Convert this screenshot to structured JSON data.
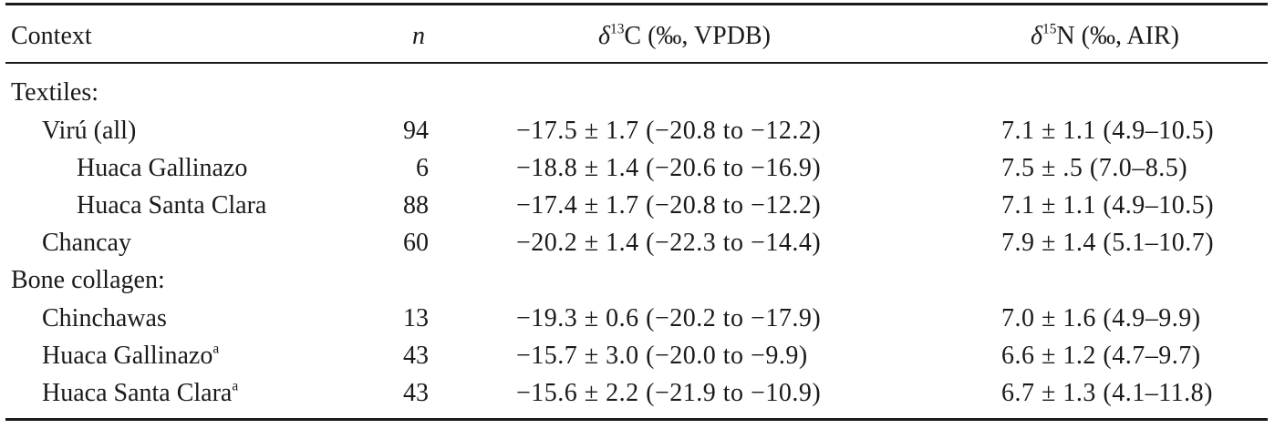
{
  "header": {
    "context": "Context",
    "n": "n",
    "d13c_delta": "δ",
    "d13c_sup": "13",
    "d13c_rest": "C (‰, VPDB)",
    "d15n_delta": "δ",
    "d15n_sup": "15",
    "d15n_rest": "N (‰, AIR)"
  },
  "rows": [
    {
      "context": "Textiles:",
      "n": "",
      "d13c": "",
      "d15n": "",
      "sup": ""
    },
    {
      "context": "Virú (all)",
      "n": "94",
      "d13c": "−17.5 ± 1.7 (−20.8 to −12.2)",
      "d15n": "7.1 ± 1.1 (4.9–10.5)",
      "sup": ""
    },
    {
      "context": "Huaca Gallinazo",
      "n": "6",
      "d13c": "−18.8 ± 1.4 (−20.6 to −16.9)",
      "d15n": "7.5 ± .5 (7.0–8.5)",
      "sup": ""
    },
    {
      "context": "Huaca Santa Clara",
      "n": "88",
      "d13c": "−17.4 ± 1.7 (−20.8 to −12.2)",
      "d15n": "7.1 ± 1.1 (4.9–10.5)",
      "sup": ""
    },
    {
      "context": "Chancay",
      "n": "60",
      "d13c": "−20.2 ± 1.4 (−22.3 to −14.4)",
      "d15n": "7.9 ± 1.4 (5.1–10.7)",
      "sup": ""
    },
    {
      "context": "Bone collagen:",
      "n": "",
      "d13c": "",
      "d15n": "",
      "sup": ""
    },
    {
      "context": "Chinchawas",
      "n": "13",
      "d13c": "−19.3 ± 0.6 (−20.2 to −17.9)",
      "d15n": "7.0 ± 1.6 (4.9–9.9)",
      "sup": ""
    },
    {
      "context": "Huaca Gallinazo",
      "n": "43",
      "d13c": "−15.7 ± 3.0 (−20.0 to −9.9)",
      "d15n": "6.6 ± 1.2 (4.7–9.7)",
      "sup": "a"
    },
    {
      "context": "Huaca Santa Clara",
      "n": "43",
      "d13c": "−15.6 ± 2.2 (−21.9 to −10.9)",
      "d15n": "6.7 ± 1.3 (4.1–11.8)",
      "sup": "a"
    }
  ]
}
